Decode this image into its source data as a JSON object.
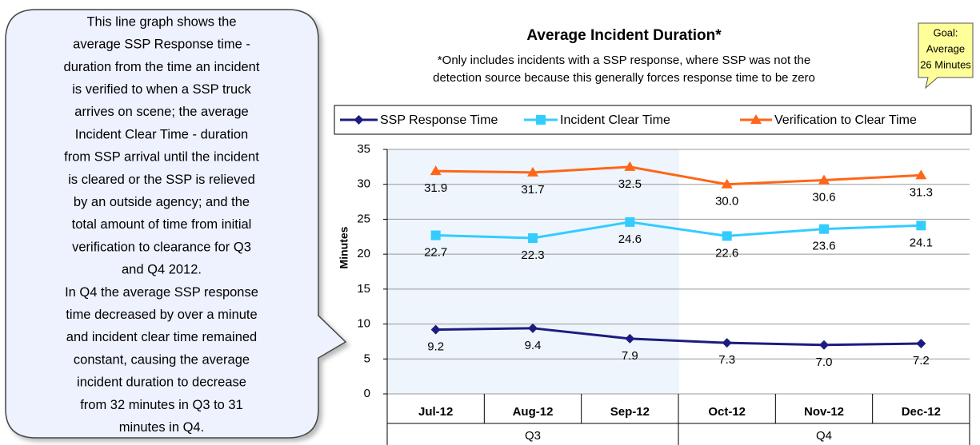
{
  "chart_data": {
    "type": "line",
    "title": "Average Incident Duration*",
    "subtitle_lines": [
      "*Only includes incidents with a SSP response, where SSP was not the",
      "detection source because this generally forces response time to be zero"
    ],
    "goal_lines": [
      "Goal:",
      "Average",
      "26 Minutes"
    ],
    "callout_lines": [
      "This line graph shows the",
      "average SSP Response time -",
      "duration from the time an incident",
      "is verified to when a SSP truck",
      "arrives on scene; the average",
      "Incident Clear Time - duration",
      "from SSP arrival until the incident",
      "is cleared or the SSP is relieved",
      "by an outside agency; and the",
      "total amount of time from initial",
      "verification to clearance for Q3",
      "and Q4 2012.",
      "In Q4 the average SSP response",
      "time decreased by over a minute",
      "and incident clear time remained",
      "constant, causing the average",
      "incident duration to decrease",
      "from 32 minutes in Q3 to 31",
      "minutes in Q4."
    ],
    "y_label": "Minutes",
    "categories": [
      "Jul-12",
      "Aug-12",
      "Sep-12",
      "Oct-12",
      "Nov-12",
      "Dec-12"
    ],
    "group_labels": [
      "Q3",
      "Q4"
    ],
    "series": [
      {
        "name": "SSP Response Time",
        "color": "#1c1c80",
        "marker": "diamond",
        "values": [
          9.2,
          9.4,
          7.9,
          7.3,
          7.0,
          7.2
        ],
        "value_labels": [
          "9.2",
          "9.4",
          "7.9",
          "7.3",
          "7.0",
          "7.2"
        ]
      },
      {
        "name": "Incident Clear  Time",
        "color": "#33ccff",
        "marker": "square",
        "values": [
          22.7,
          22.3,
          24.6,
          22.6,
          23.6,
          24.1
        ],
        "value_labels": [
          "22.7",
          "22.3",
          "24.6",
          "22.6",
          "23.6",
          "24.1"
        ]
      },
      {
        "name": "Verification to Clear Time",
        "color": "#ff6619",
        "marker": "triangle",
        "values": [
          31.9,
          31.7,
          32.5,
          30.0,
          30.6,
          31.3
        ],
        "value_labels": [
          "31.9",
          "31.7",
          "32.5",
          "30.0",
          "30.6",
          "31.3"
        ]
      }
    ],
    "ylim": [
      0,
      35
    ],
    "yticks": [
      0,
      5,
      10,
      15,
      20,
      25,
      30,
      35
    ],
    "grid": true,
    "legend": "top"
  }
}
